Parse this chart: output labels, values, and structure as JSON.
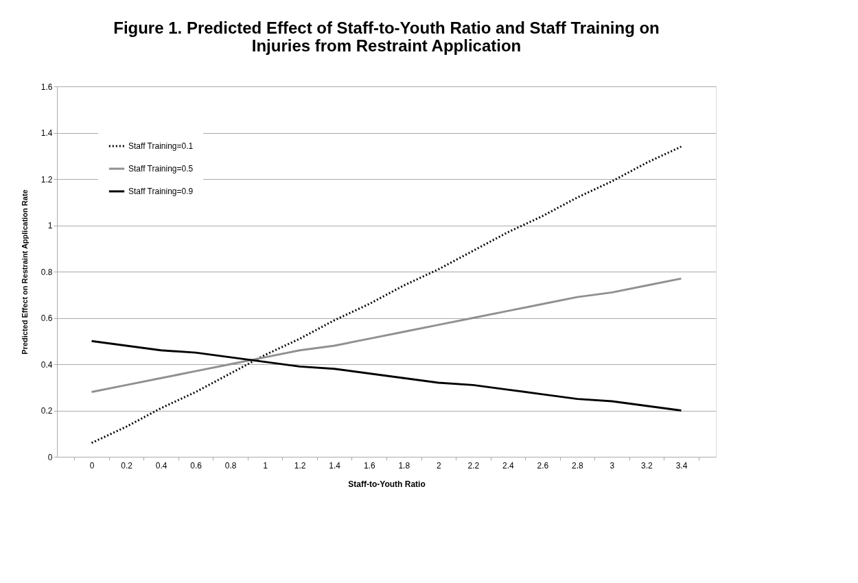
{
  "chart_data": {
    "type": "line",
    "title": "Figure 1. Predicted Effect of Staff-to-Youth Ratio and Staff Training on Injuries from Restraint Application",
    "xlabel": "Staff-to-Youth Ratio",
    "ylabel": "Predicted Effect on Restraint Application Rate",
    "categories": [
      "0",
      "0.2",
      "0.4",
      "0.6",
      "0.8",
      "1",
      "1.2",
      "1.4",
      "1.6",
      "1.8",
      "2",
      "2.2",
      "2.4",
      "2.6",
      "2.8",
      "3",
      "3.2",
      "3.4"
    ],
    "series": [
      {
        "name": "Staff Training=0.1",
        "color": "#000000",
        "line_style": "dotted",
        "values": [
          0.06,
          0.13,
          0.21,
          0.28,
          0.36,
          0.44,
          0.51,
          0.59,
          0.66,
          0.74,
          0.81,
          0.89,
          0.97,
          1.04,
          1.12,
          1.19,
          1.27,
          1.34
        ]
      },
      {
        "name": "Staff Training=0.5",
        "color": "#909090",
        "line_style": "solid",
        "values": [
          0.28,
          0.31,
          0.34,
          0.37,
          0.4,
          0.43,
          0.46,
          0.48,
          0.51,
          0.54,
          0.57,
          0.6,
          0.63,
          0.66,
          0.69,
          0.71,
          0.74,
          0.77
        ]
      },
      {
        "name": "Staff Training=0.9",
        "color": "#000000",
        "line_style": "solid",
        "values": [
          0.5,
          0.48,
          0.46,
          0.45,
          0.43,
          0.41,
          0.39,
          0.38,
          0.36,
          0.34,
          0.32,
          0.31,
          0.29,
          0.27,
          0.25,
          0.24,
          0.22,
          0.2
        ]
      }
    ],
    "ylim": [
      0,
      1.6
    ],
    "yticks": [
      0,
      0.2,
      0.4,
      0.6,
      0.8,
      1,
      1.2,
      1.4,
      1.6
    ],
    "grid": "y",
    "legend": "top left",
    "marker": "none"
  }
}
